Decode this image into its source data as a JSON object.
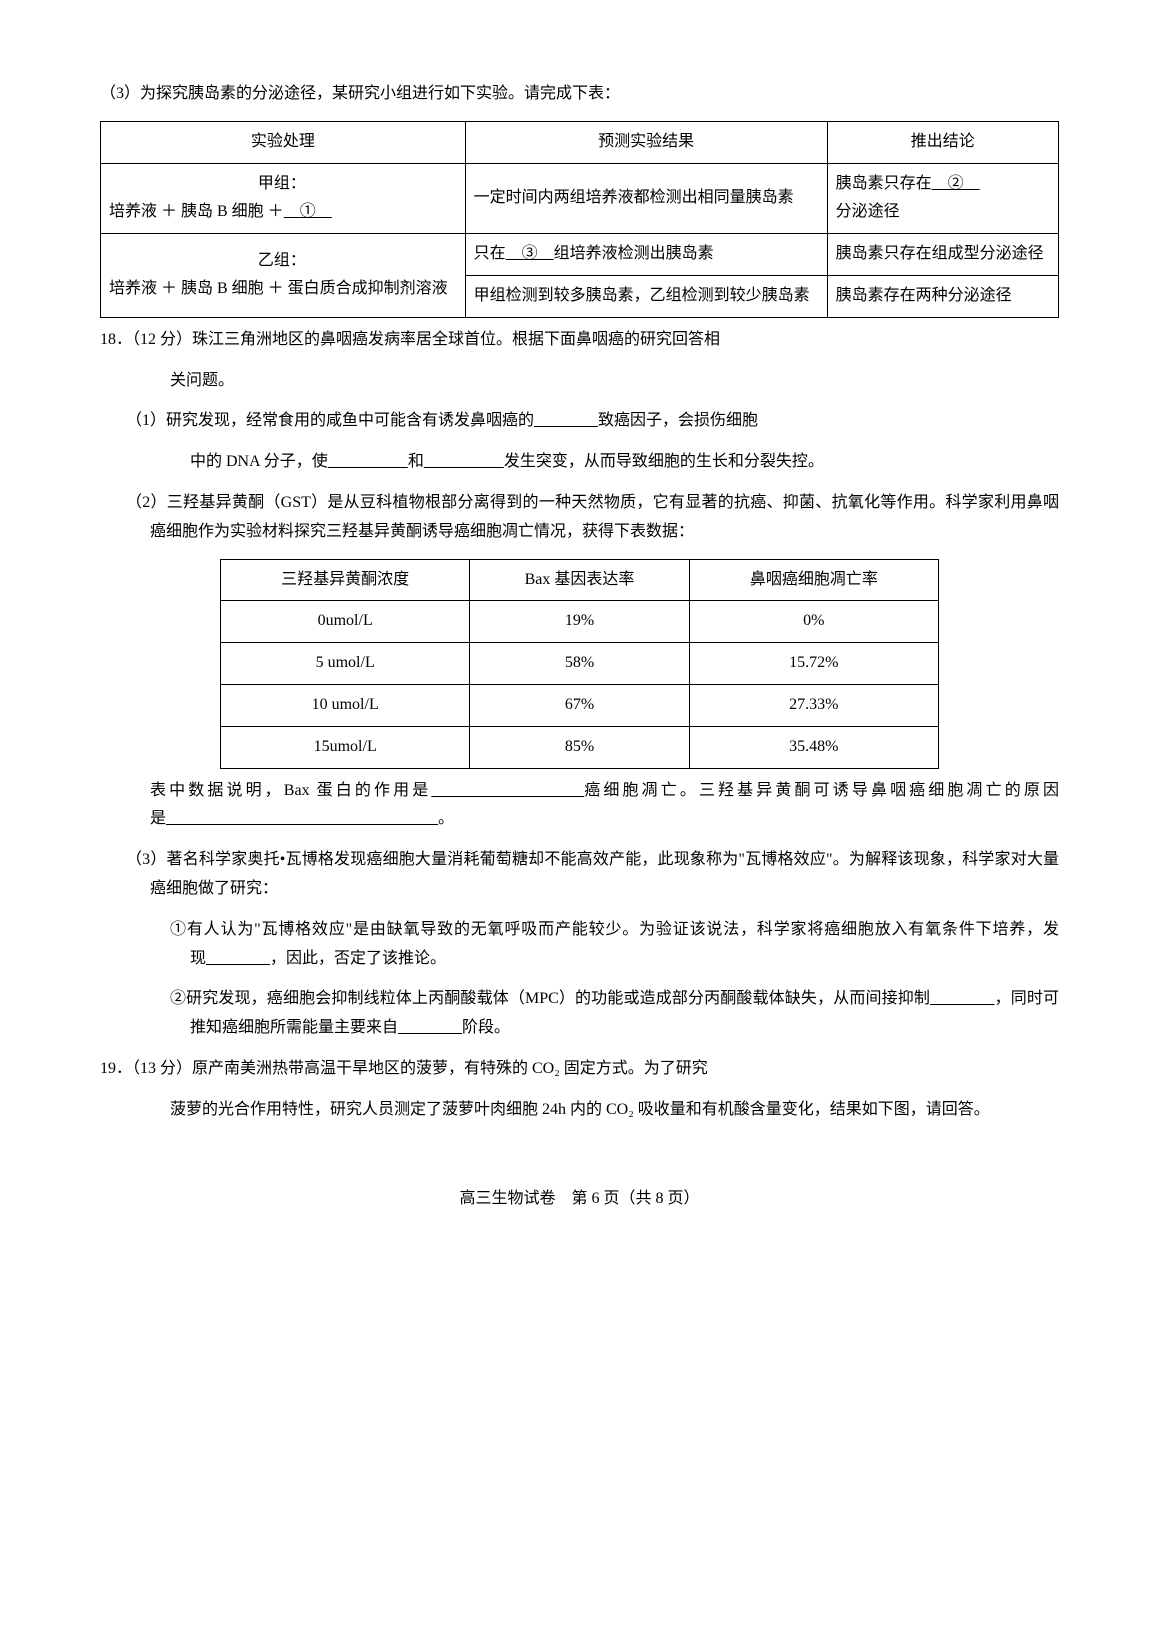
{
  "q17_3_intro": "（3）为探究胰岛素的分泌途径，某研究小组进行如下实验。请完成下表：",
  "table1": {
    "headers": [
      "实验处理",
      "预测实验结果",
      "推出结论"
    ],
    "row1": {
      "treatment_line1": "甲组：",
      "treatment_line2_a": "培养液 ＋ 胰岛 B 细胞 ＋",
      "treatment_line2_b": "　①　",
      "result": "一定时间内两组培养液都检测出相同量胰岛素",
      "conclusion_a": "胰岛素只存在",
      "conclusion_b": "　②　",
      "conclusion_c": "分泌途径"
    },
    "row2_3_treatment": {
      "line1": "乙组：",
      "line2": "培养液 ＋ 胰岛 B 细胞 ＋ 蛋白质合成抑制剂溶液"
    },
    "row2": {
      "result_a": "只在",
      "result_b": "　③　",
      "result_c": "组培养液检测出胰岛素",
      "conclusion": "胰岛素只存在组成型分泌途径"
    },
    "row3": {
      "result": "甲组检测到较多胰岛素，乙组检测到较少胰岛素",
      "conclusion": "胰岛素存在两种分泌途径"
    }
  },
  "q18_intro_a": "18．（12 分）珠江三角洲地区的鼻咽癌发病率居全球首位。根据下面鼻咽癌的研究回答相",
  "q18_intro_b": "关问题。",
  "q18_1_a": "（1）研究发现，经常食用的咸鱼中可能含有诱发鼻咽癌的",
  "q18_1_b": "致癌因子，会损伤细胞",
  "q18_1_c": "中的 DNA 分子，使",
  "q18_1_d": "和",
  "q18_1_e": "发生突变，从而导致细胞的生长和分裂失控。",
  "q18_2_intro": "（2）三羟基异黄酮（GST）是从豆科植物根部分离得到的一种天然物质，它有显著的抗癌、抑菌、抗氧化等作用。科学家利用鼻咽癌细胞作为实验材料探究三羟基异黄酮诱导癌细胞凋亡情况，获得下表数据：",
  "table2": {
    "headers": [
      "三羟基异黄酮浓度",
      "Bax 基因表达率",
      "鼻咽癌细胞凋亡率"
    ],
    "rows": [
      [
        "0umol/L",
        "19%",
        "0%"
      ],
      [
        "5 umol/L",
        "58%",
        "15.72%"
      ],
      [
        "10 umol/L",
        "67%",
        "27.33%"
      ],
      [
        "15umol/L",
        "85%",
        "35.48%"
      ]
    ]
  },
  "q18_2_after_a": "表中数据说明，Bax 蛋白的作用是",
  "q18_2_after_b": "癌细胞凋亡。三羟基异黄酮可诱导鼻咽癌细胞凋亡的原因是",
  "q18_2_after_c": "。",
  "q18_3_intro": "（3）著名科学家奥托•瓦博格发现癌细胞大量消耗葡萄糖却不能高效产能，此现象称为\"瓦博格效应\"。为解释该现象，科学家对大量癌细胞做了研究：",
  "q18_3_1_a": "①有人认为\"瓦博格效应\"是由缺氧导致的无氧呼吸而产能较少。为验证该说法，科学家将癌细胞放入有氧条件下培养，发现",
  "q18_3_1_b": "，因此，否定了该推论。",
  "q18_3_2_a": "②研究发现，癌细胞会抑制线粒体上丙酮酸载体（MPC）的功能或造成部分丙酮酸载体缺失，从而间接抑制",
  "q18_3_2_b": "，同时可推知癌细胞所需能量主要来自",
  "q18_3_2_c": "阶段。",
  "q19_a": "19．（13 分）原产南美洲热带高温干旱地区的菠萝，有特殊的 CO₂ 固定方式。为了研究",
  "q19_b": "菠萝的光合作用特性，研究人员测定了菠萝叶肉细胞 24h 内的 CO₂ 吸收量和有机酸含量变化，结果如下图，请回答。",
  "footer": "高三生物试卷　第 6 页（共 8 页）",
  "blanks": {
    "short": "　　　　",
    "mid": "　　　　　",
    "long": "　　　　　　　　",
    "xlong": "　　　　　　　　　　　　　　　　　"
  }
}
